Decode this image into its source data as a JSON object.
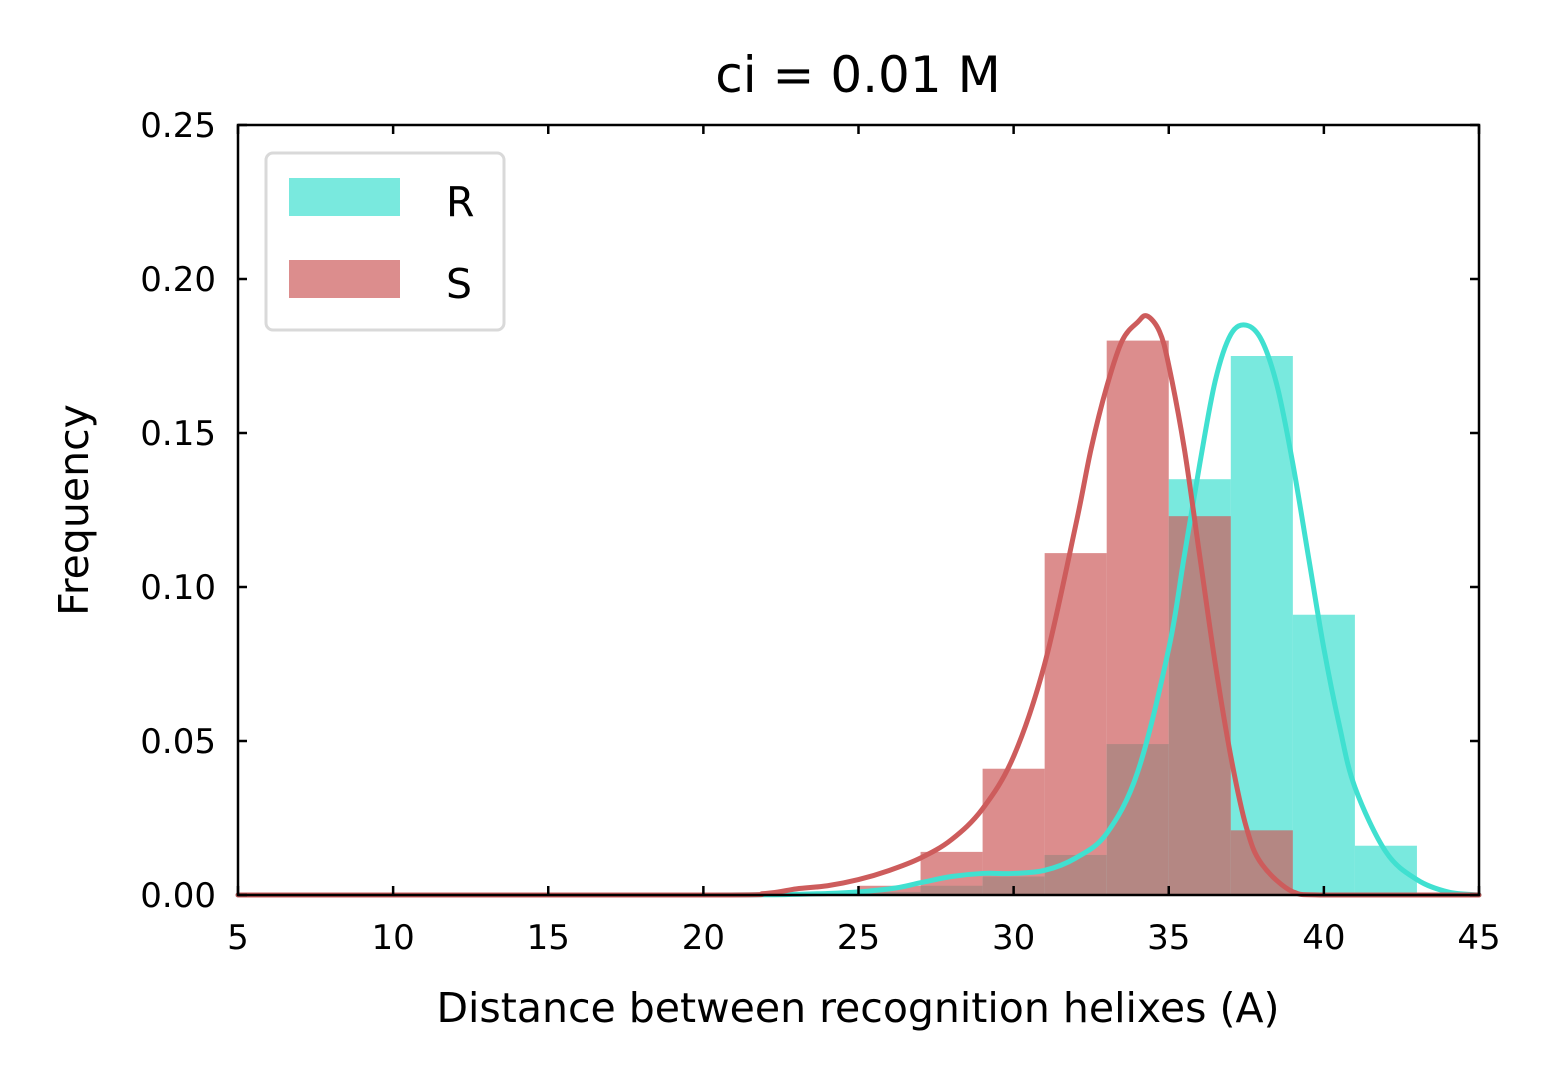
{
  "chart_data": {
    "type": "bar",
    "title": "ci = 0.01 M",
    "xlabel": "Distance between recognition helixes (A)",
    "ylabel": "Frequency",
    "xlim": [
      5,
      45
    ],
    "ylim": [
      0,
      0.25
    ],
    "xticks": [
      5,
      10,
      15,
      20,
      25,
      30,
      35,
      40,
      45
    ],
    "yticks": [
      0.0,
      0.05,
      0.1,
      0.15,
      0.2,
      0.25
    ],
    "xtick_labels": [
      "5",
      "10",
      "15",
      "20",
      "25",
      "30",
      "35",
      "40",
      "45"
    ],
    "ytick_labels": [
      "0.00",
      "0.05",
      "0.10",
      "0.15",
      "0.20",
      "0.25"
    ],
    "grid": false,
    "legend_position": "top-left",
    "series": [
      {
        "name": "R",
        "color": "#40e0d0",
        "histogram": {
          "bin_edges": [
            25,
            27,
            29,
            31,
            33,
            35,
            37,
            39,
            41,
            43
          ],
          "values": [
            0.001,
            0.003,
            0.006,
            0.013,
            0.049,
            0.135,
            0.175,
            0.091,
            0.016
          ]
        },
        "kde": {
          "x": [
            5,
            20,
            24,
            26,
            27,
            28,
            29,
            30,
            31,
            32,
            33,
            34,
            35,
            35.5,
            36,
            36.5,
            37,
            37.5,
            38,
            38.5,
            39,
            39.5,
            40,
            40.5,
            41,
            42,
            43,
            44,
            45
          ],
          "y": [
            0,
            0,
            0.0005,
            0.002,
            0.004,
            0.006,
            0.007,
            0.007,
            0.008,
            0.012,
            0.02,
            0.04,
            0.08,
            0.11,
            0.14,
            0.167,
            0.182,
            0.185,
            0.18,
            0.165,
            0.14,
            0.11,
            0.08,
            0.055,
            0.035,
            0.014,
            0.005,
            0.001,
            0
          ]
        }
      },
      {
        "name": "S",
        "color": "#cd5c5c",
        "histogram": {
          "bin_edges": [
            5,
            7,
            9,
            11,
            13,
            15,
            17,
            19,
            21,
            23,
            25,
            27,
            29,
            31,
            33,
            35,
            37,
            39
          ],
          "values": [
            0.0005,
            0.0005,
            0.0005,
            0.0005,
            0.0005,
            0.0005,
            0.0005,
            0.0005,
            0.0005,
            0.0005,
            0.003,
            0.014,
            0.041,
            0.111,
            0.18,
            0.123,
            0.021
          ]
        },
        "kde": {
          "x": [
            5,
            20,
            22,
            23,
            24,
            25,
            26,
            27,
            28,
            29,
            30,
            31,
            32,
            32.5,
            33,
            33.5,
            34,
            34.3,
            34.7,
            35,
            35.5,
            36,
            36.5,
            37,
            37.5,
            38,
            39,
            40,
            45
          ],
          "y": [
            0,
            0,
            0.0005,
            0.002,
            0.003,
            0.005,
            0.008,
            0.012,
            0.018,
            0.028,
            0.045,
            0.075,
            0.12,
            0.145,
            0.165,
            0.18,
            0.186,
            0.188,
            0.183,
            0.172,
            0.145,
            0.11,
            0.075,
            0.045,
            0.022,
            0.01,
            0.001,
            0,
            0
          ]
        }
      }
    ]
  }
}
